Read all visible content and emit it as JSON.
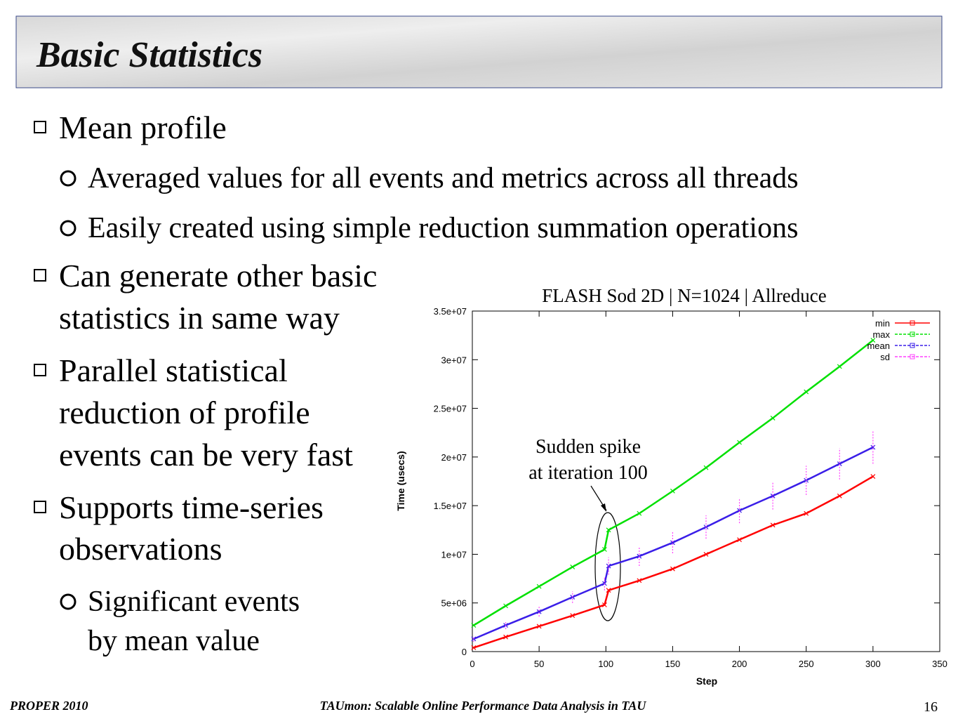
{
  "slide": {
    "title": "Basic Statistics",
    "bullets": [
      {
        "level": 1,
        "lines": [
          "Mean profile"
        ]
      },
      {
        "level": 2,
        "lines": [
          "Averaged values for all events and metrics across all threads"
        ]
      },
      {
        "level": 2,
        "lines": [
          "Easily created using simple reduction summation operations"
        ]
      },
      {
        "level": 1,
        "lines": [
          "Can generate other basic",
          "statistics in same way"
        ]
      },
      {
        "level": 1,
        "lines": [
          "Parallel statistical",
          "reduction of profile",
          "events can be very fast"
        ]
      },
      {
        "level": 1,
        "lines": [
          "Supports time-series",
          "observations"
        ]
      },
      {
        "level": 2,
        "lines": [
          "Significant events",
          "by mean value"
        ]
      }
    ],
    "footer": {
      "left": "PROPER 2010",
      "center": "TAUmon: Scalable Online Performance Data Analysis in TAU",
      "page": 16
    }
  },
  "chart_data": {
    "type": "line",
    "title": "FLASH Sod 2D | N=1024 | Allreduce",
    "x_label": "Step",
    "y_label": "Time (usecs)",
    "annotation": [
      "Sudden spike",
      "at iteration 100"
    ],
    "x": [
      1,
      25,
      50,
      75,
      99,
      102,
      125,
      150,
      175,
      200,
      225,
      250,
      275,
      300
    ],
    "series": [
      {
        "name": "min",
        "color": "#ff0000",
        "values": [
          400000,
          1500000,
          2600000,
          3700000,
          4800000,
          6300000,
          7300000,
          8500000,
          10000000,
          11500000,
          13000000,
          14200000,
          16000000,
          18000000
        ]
      },
      {
        "name": "max",
        "color": "#00e000",
        "values": [
          2700000,
          4700000,
          6700000,
          8700000,
          10500000,
          12500000,
          14200000,
          16500000,
          18900000,
          21500000,
          24000000,
          26700000,
          29300000,
          32000000
        ]
      },
      {
        "name": "mean",
        "color": "#3a1ee8",
        "values": [
          1300000,
          2700000,
          4100000,
          5600000,
          7000000,
          8800000,
          9800000,
          11200000,
          12800000,
          14500000,
          16000000,
          17600000,
          19300000,
          21000000
        ]
      },
      {
        "name": "sd",
        "color": "#ff40ff",
        "error_of": "mean",
        "values": [
          300000,
          400000,
          500000,
          600000,
          700000,
          900000,
          1000000,
          1100000,
          1200000,
          1300000,
          1400000,
          1500000,
          1600000,
          1700000
        ]
      }
    ],
    "xlim": [
      0,
      350
    ],
    "xticks": [
      0,
      50,
      100,
      150,
      200,
      250,
      300,
      350
    ],
    "ylim": [
      0,
      35000000
    ],
    "yticks": [
      0,
      {
        "value": 5000000,
        "label": "5e+06"
      },
      {
        "value": 10000000,
        "label": "1e+07"
      },
      {
        "value": 15000000,
        "label": "1.5e+07"
      },
      {
        "value": 20000000,
        "label": "2e+07"
      },
      {
        "value": 25000000,
        "label": "2.5e+07"
      },
      {
        "value": 30000000,
        "label": "3e+07"
      },
      {
        "value": 35000000,
        "label": "3.5e+07"
      }
    ],
    "legend": "upper right",
    "grid": false
  }
}
